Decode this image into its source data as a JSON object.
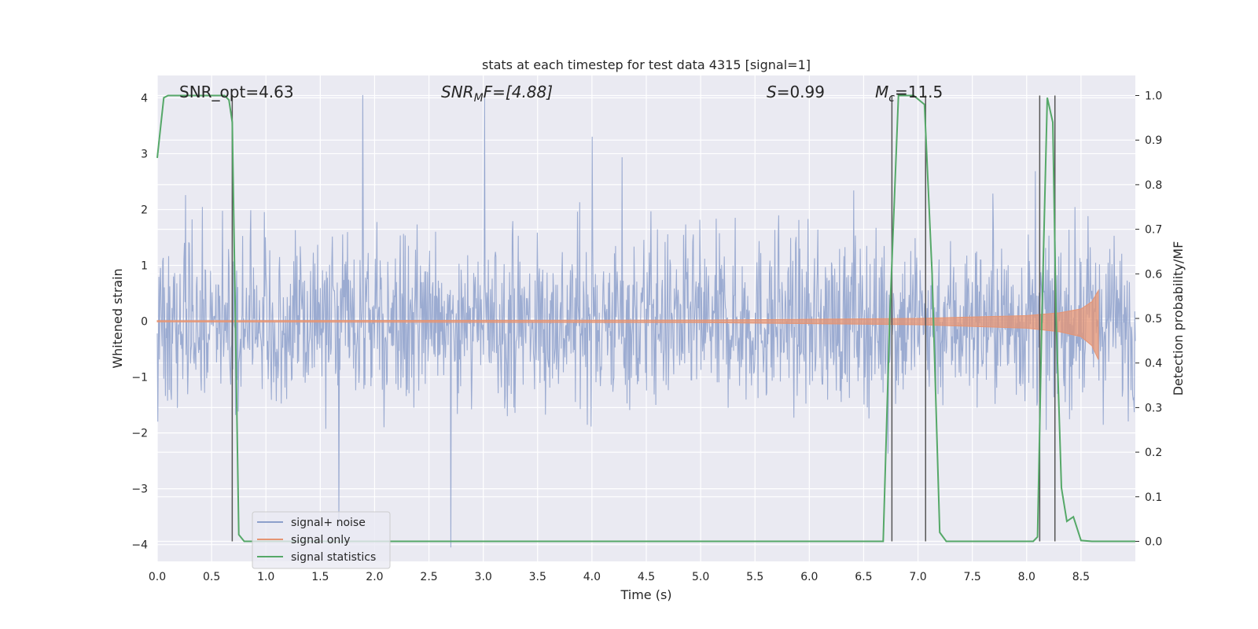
{
  "chart_data": {
    "type": "line",
    "title": "stats at each timestep for test data 4315 [signal=1]",
    "xlabel": "Time (s)",
    "ylabel": "Whitened strain",
    "y2label": "Detection probability/MF",
    "xlim": [
      0.0,
      9.0
    ],
    "ylim": [
      -4.3,
      4.4
    ],
    "y2lim": [
      -0.045,
      1.045
    ],
    "xticks": [
      "0.0",
      "0.5",
      "1.0",
      "1.5",
      "2.0",
      "2.5",
      "3.0",
      "3.5",
      "4.0",
      "4.5",
      "5.0",
      "5.5",
      "6.0",
      "6.5",
      "7.0",
      "7.5",
      "8.0",
      "8.5"
    ],
    "yticks": [
      "4",
      "3",
      "2",
      "1",
      "0",
      "−1",
      "−2",
      "−3",
      "−4"
    ],
    "y2ticks": [
      "1.0",
      "0.9",
      "0.8",
      "0.7",
      "0.6",
      "0.5",
      "0.4",
      "0.3",
      "0.2",
      "0.1",
      "0.0"
    ],
    "grid": true,
    "legend_position": "lower-left",
    "annotations": {
      "snr_opt": "SNR_opt=4.63",
      "snr_mf_main": "SNR",
      "snr_mf_sub": "M",
      "snr_mf_rest": "F=[4.88]",
      "s_main": "S",
      "s_rest": "=0.99",
      "mc_main": "M",
      "mc_sub": "c",
      "mc_rest": "=11.5"
    },
    "series": [
      {
        "name": "signal+ noise",
        "color": "#8da0cb",
        "axis": "left",
        "description_of_values": "dense noise, roughly within ±1.6 with spikes up to ±4"
      },
      {
        "name": "signal only",
        "color": "#e59473",
        "axis": "left",
        "chirp_envelope": {
          "x": [
            0.0,
            5.0,
            7.0,
            8.0,
            8.3,
            8.5,
            8.6,
            8.66
          ],
          "amplitude": [
            0.01,
            0.02,
            0.05,
            0.1,
            0.15,
            0.22,
            0.35,
            0.55
          ]
        }
      },
      {
        "name": "signal statistics",
        "color": "#55a868",
        "axis": "right",
        "x": [
          0.0,
          0.06,
          0.1,
          0.3,
          0.5,
          0.62,
          0.66,
          0.69,
          0.75,
          0.8,
          0.86,
          1.0,
          3.0,
          6.0,
          6.68,
          6.74,
          6.82,
          6.96,
          7.06,
          7.13,
          7.2,
          7.26,
          7.4,
          8.06,
          8.1,
          8.14,
          8.19,
          8.24,
          8.27,
          8.32,
          8.37,
          8.43,
          8.5,
          8.6,
          9.0
        ],
        "values": [
          0.86,
          0.995,
          1.0,
          1.0,
          1.0,
          1.0,
          0.99,
          0.94,
          0.015,
          0.0,
          0.0,
          0.0,
          0.0,
          0.0,
          0.0,
          0.5,
          1.0,
          1.0,
          0.98,
          0.6,
          0.02,
          0.0,
          0.0,
          0.0,
          0.01,
          0.5,
          0.995,
          0.94,
          0.51,
          0.12,
          0.045,
          0.055,
          0.002,
          0.0,
          0.0
        ]
      }
    ],
    "vertical_markers_x": [
      0.69,
      6.76,
      7.07,
      8.12,
      8.26
    ]
  }
}
